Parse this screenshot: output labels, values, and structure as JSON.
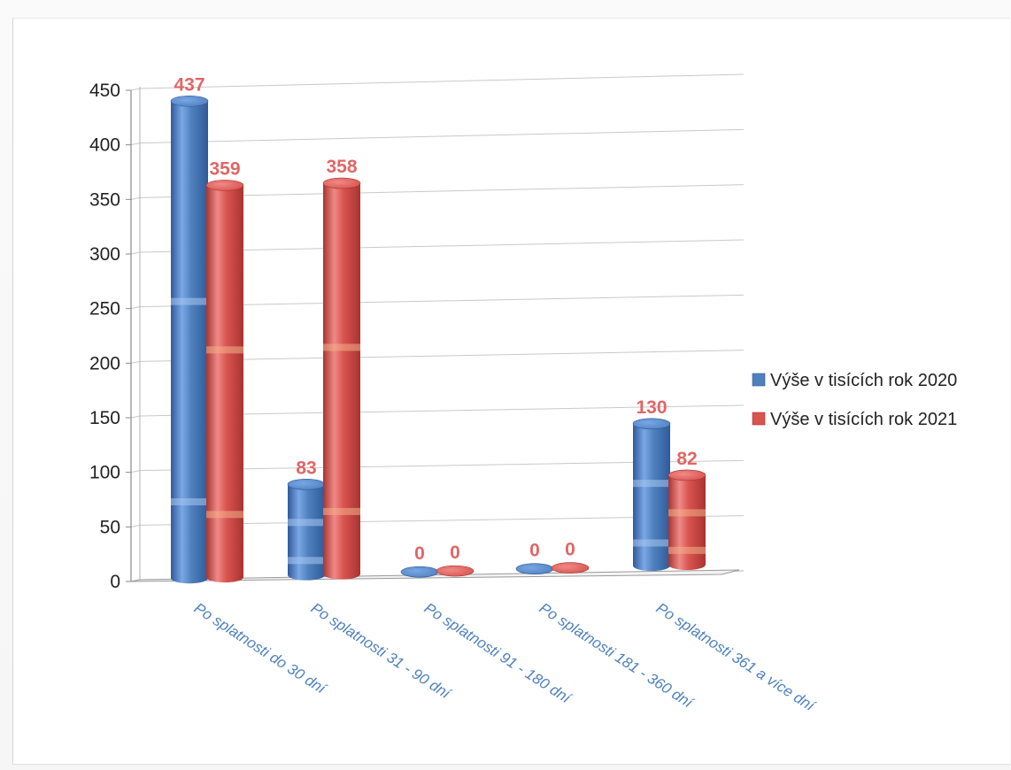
{
  "chart_data": {
    "type": "bar",
    "style": "3d-cylinder",
    "categories": [
      "Po splatnosti do 30 dní",
      "Po splatnosti  31 - 90 dní",
      "Po splatnosti 91 - 180 dní",
      "Po splatnosti  181 - 360 dní",
      "Po splatnosti 361 a více dní"
    ],
    "series": [
      {
        "name": "Výše v  tisících rok 2020",
        "values": [
          437,
          83,
          0,
          0,
          130
        ],
        "color": "#4f81bd",
        "light": "#7aa7e6",
        "dark": "#2f5a9a"
      },
      {
        "name": "Výše v  tisících rok 2021",
        "values": [
          359,
          358,
          0,
          0,
          82
        ],
        "color": "#d9534f",
        "light": "#ef8a87",
        "dark": "#a83431"
      }
    ],
    "y_ticks": [
      "0",
      "50",
      "100",
      "150",
      "200",
      "250",
      "300",
      "350",
      "400",
      "450"
    ],
    "ylim": [
      0,
      450
    ],
    "grid": true,
    "legend_position": "right",
    "data_labels": true,
    "title": "",
    "xlabel": "",
    "ylabel": ""
  }
}
